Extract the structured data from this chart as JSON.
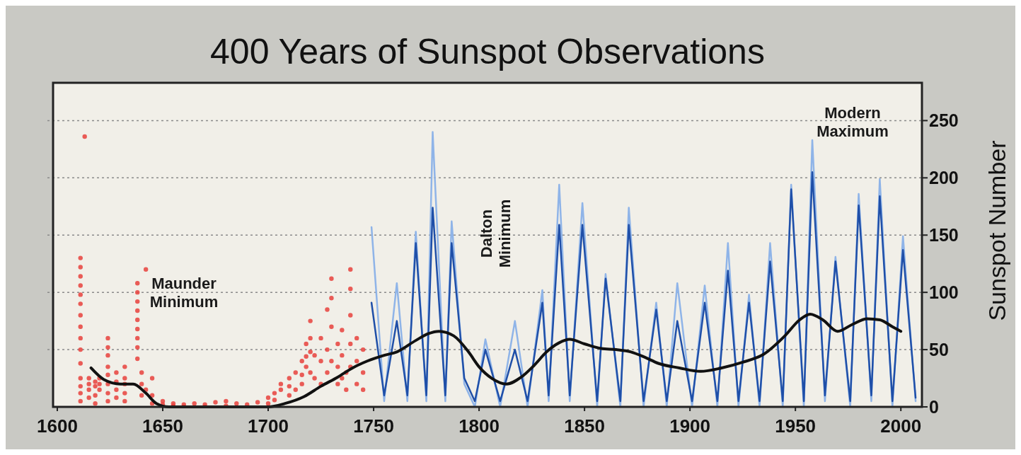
{
  "chart_data": {
    "type": "line",
    "title": "400 Years of Sunspot Observations",
    "ylabel": "Sunspot Number",
    "xlim": [
      1598,
      2010
    ],
    "ylim": [
      0,
      283
    ],
    "xticks": [
      1600,
      1650,
      1700,
      1750,
      1800,
      1850,
      1900,
      1950,
      2000
    ],
    "yticks": [
      0,
      50,
      100,
      150,
      200,
      250
    ],
    "grid": "y",
    "annotations": [
      "Maunder Minimum",
      "Dalton Minimum",
      "Modern Maximum"
    ],
    "series": [
      {
        "type": "scatter",
        "marker": "circle",
        "color": "#e8413c",
        "x": [
          1611,
          1611,
          1611,
          1611,
          1611,
          1611,
          1611,
          1611,
          1611,
          1611,
          1611,
          1611,
          1611,
          1611,
          1611,
          1613,
          1615,
          1615,
          1615,
          1615,
          1618,
          1618,
          1618,
          1618,
          1620,
          1620,
          1620,
          1624,
          1624,
          1624,
          1624,
          1624,
          1624,
          1624,
          1624,
          1628,
          1628,
          1628,
          1628,
          1632,
          1632,
          1632,
          1632,
          1632,
          1638,
          1638,
          1638,
          1638,
          1638,
          1638,
          1638,
          1638,
          1638,
          1640,
          1640,
          1640,
          1642,
          1642,
          1645,
          1645,
          1645,
          1650,
          1650,
          1655,
          1655,
          1660,
          1660,
          1665,
          1670,
          1670,
          1675,
          1680,
          1680,
          1685,
          1690,
          1695,
          1700,
          1700,
          1703,
          1703,
          1706,
          1706,
          1710,
          1710,
          1710,
          1713,
          1713,
          1716,
          1716,
          1716,
          1718,
          1718,
          1718,
          1720,
          1720,
          1720,
          1720,
          1722,
          1722,
          1725,
          1725,
          1725,
          1728,
          1728,
          1728,
          1730,
          1730,
          1730,
          1730,
          1733,
          1733,
          1733,
          1735,
          1735,
          1735,
          1737,
          1737,
          1739,
          1739,
          1739,
          1739,
          1739,
          1742,
          1742,
          1742,
          1745,
          1745,
          1745
        ],
        "values": [
          130,
          122,
          114,
          106,
          98,
          90,
          80,
          70,
          60,
          50,
          38,
          25,
          18,
          12,
          5,
          236,
          20,
          15,
          8,
          25,
          18,
          22,
          10,
          3,
          15,
          25,
          20,
          60,
          52,
          45,
          35,
          28,
          20,
          12,
          5,
          22,
          15,
          30,
          8,
          25,
          20,
          12,
          5,
          35,
          108,
          100,
          92,
          84,
          76,
          68,
          60,
          52,
          42,
          30,
          20,
          10,
          120,
          15,
          25,
          10,
          3,
          5,
          2,
          3,
          1,
          2,
          0,
          3,
          2,
          0,
          4,
          1,
          5,
          3,
          2,
          4,
          3,
          8,
          12,
          6,
          15,
          20,
          10,
          25,
          18,
          30,
          15,
          40,
          28,
          20,
          55,
          44,
          35,
          75,
          60,
          48,
          30,
          45,
          25,
          60,
          40,
          20,
          85,
          50,
          30,
          112,
          95,
          70,
          40,
          55,
          35,
          20,
          67,
          45,
          25,
          30,
          15,
          120,
          103,
          80,
          55,
          35,
          60,
          40,
          20,
          50,
          30,
          15
        ]
      },
      {
        "color": "#8fb4e8",
        "x": [
          1749,
          1755,
          1761,
          1766,
          1770,
          1775,
          1778,
          1784,
          1787,
          1793,
          1798,
          1803,
          1810,
          1817,
          1823,
          1830,
          1833,
          1838,
          1843,
          1849,
          1856,
          1860,
          1867,
          1871,
          1878,
          1884,
          1889,
          1894,
          1901,
          1907,
          1913,
          1918,
          1923,
          1928,
          1933,
          1938,
          1944,
          1948,
          1954,
          1958,
          1964,
          1969,
          1976,
          1980,
          1986,
          1990,
          1996,
          2001,
          2007
        ],
        "values": [
          157,
          5,
          108,
          5,
          153,
          5,
          240,
          5,
          162,
          20,
          0,
          59,
          0,
          75,
          0,
          102,
          5,
          194,
          5,
          178,
          0,
          116,
          0,
          174,
          0,
          91,
          0,
          108,
          0,
          106,
          0,
          143,
          0,
          98,
          0,
          143,
          0,
          194,
          0,
          233,
          5,
          131,
          0,
          186,
          5,
          199,
          0,
          149,
          5
        ]
      },
      {
        "color": "#1f4fa8",
        "x": [
          1749,
          1755,
          1761,
          1766,
          1770,
          1775,
          1778,
          1784,
          1787,
          1793,
          1798,
          1803,
          1810,
          1817,
          1823,
          1830,
          1833,
          1838,
          1843,
          1849,
          1856,
          1860,
          1867,
          1871,
          1878,
          1884,
          1889,
          1894,
          1901,
          1907,
          1913,
          1918,
          1923,
          1928,
          1933,
          1938,
          1944,
          1948,
          1954,
          1958,
          1964,
          1969,
          1976,
          1980,
          1986,
          1990,
          1996,
          2001,
          2007
        ],
        "values": [
          91,
          10,
          75,
          10,
          143,
          10,
          174,
          10,
          143,
          25,
          5,
          50,
          5,
          50,
          5,
          91,
          10,
          159,
          10,
          159,
          5,
          112,
          5,
          159,
          5,
          85,
          5,
          75,
          5,
          91,
          5,
          119,
          5,
          91,
          5,
          127,
          5,
          190,
          5,
          205,
          10,
          127,
          5,
          176,
          10,
          184,
          5,
          137,
          8
        ]
      },
      {
        "color": "#111111",
        "x": [
          1616,
          1622,
          1630,
          1636,
          1642,
          1647,
          1653,
          1675,
          1700,
          1708,
          1717,
          1725,
          1733,
          1740,
          1747,
          1755,
          1761,
          1770,
          1776,
          1781,
          1788,
          1795,
          1800,
          1806,
          1813,
          1820,
          1826,
          1832,
          1838,
          1843,
          1850,
          1858,
          1865,
          1872,
          1879,
          1885,
          1895,
          1905,
          1915,
          1925,
          1935,
          1945,
          1952,
          1957,
          1963,
          1970,
          1977,
          1984,
          1990,
          1996,
          2000
        ],
        "values": [
          34,
          24,
          20,
          20,
          12,
          3,
          0,
          0,
          0,
          3,
          9,
          18,
          26,
          34,
          40,
          45,
          48,
          58,
          64,
          66,
          62,
          48,
          35,
          25,
          20,
          26,
          36,
          48,
          56,
          59,
          55,
          51,
          50,
          48,
          43,
          38,
          34,
          31,
          34,
          39,
          46,
          62,
          76,
          81,
          76,
          66,
          72,
          77,
          76,
          70,
          66
        ]
      }
    ]
  }
}
